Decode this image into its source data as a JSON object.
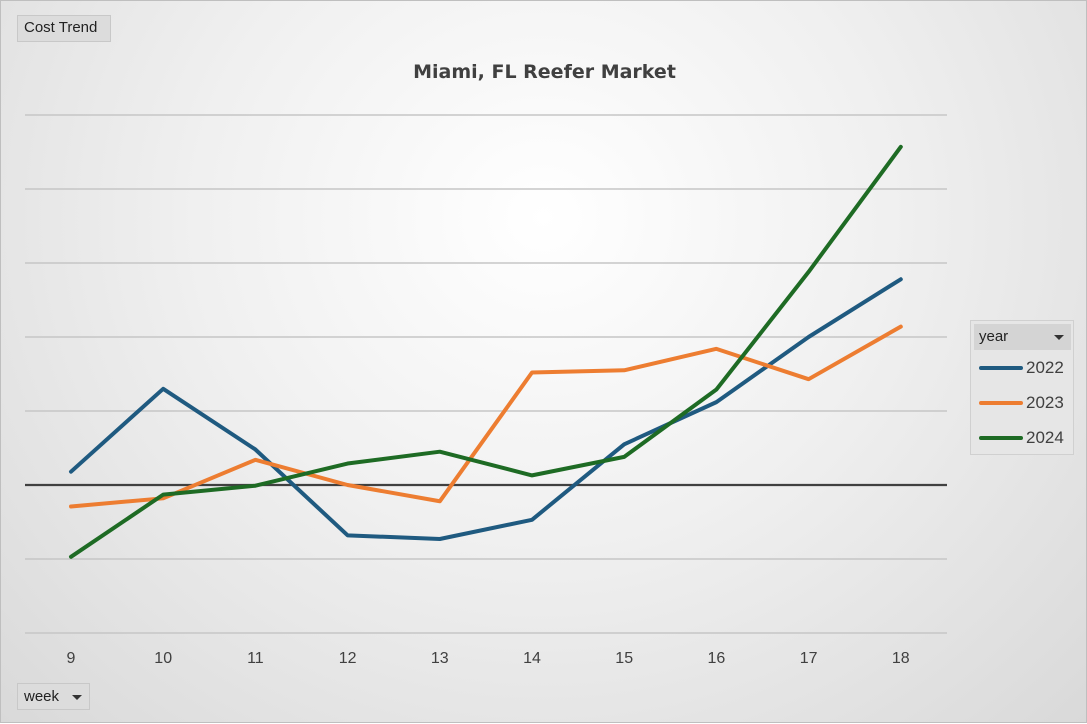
{
  "pivot_buttons": {
    "report": "Cost Trend",
    "axis": "week"
  },
  "legend_header": "year",
  "chart_data": {
    "type": "line",
    "title": "Miami, FL Reefer Market",
    "xlabel": "",
    "ylabel": "",
    "categories": [
      "9",
      "10",
      "11",
      "12",
      "13",
      "14",
      "15",
      "16",
      "17",
      "18"
    ],
    "y_tick_labels_shown": false,
    "ylim": [
      -2,
      5
    ],
    "y_gridlines": [
      -2,
      -1,
      0,
      1,
      2,
      3,
      4,
      5
    ],
    "baseline": 0,
    "grid": true,
    "legend_position": "right",
    "series": [
      {
        "name": "2022",
        "color": "#1f5a80",
        "values": [
          0.18,
          1.3,
          0.48,
          -0.68,
          -0.73,
          -0.47,
          0.55,
          1.12,
          2.0,
          2.78
        ]
      },
      {
        "name": "2023",
        "color": "#ed7d31",
        "values": [
          -0.29,
          -0.18,
          0.34,
          0.0,
          -0.22,
          1.52,
          1.55,
          1.84,
          1.43,
          2.14
        ]
      },
      {
        "name": "2024",
        "color": "#1e6b24",
        "values": [
          -0.97,
          -0.13,
          -0.01,
          0.29,
          0.45,
          0.13,
          0.38,
          1.29,
          2.88,
          4.57
        ]
      }
    ]
  }
}
